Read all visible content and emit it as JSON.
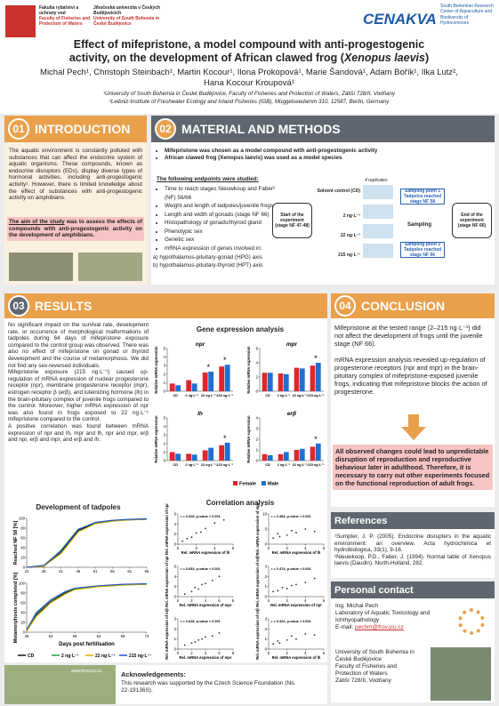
{
  "header": {
    "logo_faculty_cz": "Fakulta rybářství a ochrany vod",
    "logo_faculty_en": "Faculty of Fisheries and Protection of Waters",
    "logo_uni_cz": "Jihočeská univerzita v Českých Budějovicích",
    "logo_uni_en": "University of South Bohemia in České Budějovice",
    "logo_cenakva": "CENAKVA",
    "logo_center": "South Bohemian Research Center of Aquaculture and Biodiversity of Hydrocenoses",
    "title": "Effect of mifepristone, a model compound with anti-progestogenic activity, on the development of African clawed frog (",
    "title_species": "Xenopus laevis",
    "title_end": ")",
    "authors": "Michal Pech¹, Christoph Steinbach¹, Martin Kocour¹, Ilona Prokopová¹, Marie Šandová¹, Adam Bořík¹, Ilka Lutz², Hana Kocour Kroupová¹",
    "affiliations": [
      "¹University of South Bohemia in České Budějovice, Faculty of Fisheries and Protection of Waters, Zátiší 728/II, Vodňany",
      "²Leibniz-Institute of Freshwater Ecology and Inland Fisheries (IGB), Müggelseedamm 310, 12587, Berlin, Germany"
    ]
  },
  "intro": {
    "number": "01",
    "heading": "INTRODUCTION",
    "text": "The aquatic environment is constantly polluted with substances that can affect the endocrine system of aquatic organisms. These compounds, known as endocrine disruptors (EDs), display diverse types of hormonal activities, including anti-progestogenic activity¹. However, there is limited knowledge about the effect of substances with anti-progestogenic activity on amphibians.",
    "aim_lead": "The aim of the study",
    "aim_text": " was to assess the effects of compounds with anti-progestogenic activity on the development of amphibians."
  },
  "methods": {
    "number": "02",
    "heading": "MATERIAL AND METHODS",
    "bullets": [
      "Mifepristone was chosen as a model compound with anti-progestogenic activity",
      "African clawed frog (Xenopus laevis) was used as a model species"
    ],
    "endpoints_heading": "The following endpoints were studied:",
    "endpoints": [
      "Time to reach stages Nieuwkoup and Faber² (NF) 58/66",
      "Weight and length of tadpoles/juvenile frogs",
      "Length and width of gonads (stage NF 66)",
      "Histopathology of gonads/thyroid gland",
      "Phenotypic sex",
      "Genetic sex",
      "mRNA expression of genes involved in:"
    ],
    "axes": [
      "a) hypothalamus-pituitary-gonad (HPG) axis",
      "b) hypothalamus-pituitary-thyroid (HPT) axis"
    ],
    "diagram": {
      "start": "Start of the experiment (stage NF 47-48)",
      "replicates": "4 replicates",
      "groups": [
        "Solvent control (CD)",
        "2 ng·L⁻¹",
        "22 ng·L⁻¹",
        "215 ng·L⁻¹"
      ],
      "sampling1": "Sampling point 1 Tadpoles reached stage NF 58",
      "sampling": "Sampling",
      "sampling2": "Sampling point 2 Tadpoles reached stage NF 66",
      "end": "End of the experiment (stage NF 66)"
    }
  },
  "results": {
    "number": "03",
    "heading": "RESULTS",
    "paragraphs": [
      "No significant impact on the survival rate, development rate, or occurrence of morphological malformations of tadpoles during 64 days of mifepristone exposure compared to the control group was observed. There was also no effect of mifepristone on gonad or thyroid development and the course of metamorphosis. We did not find any sex-reversed individuals.",
      "Mifepristone exposure (215 ng·L⁻¹) caused up-regulation of mRNA expression of nuclear progesterone receptor (npr), membrane progesterone receptor (mpr), estrogen receptor β (erβ), and luteinizing hormone (lh) in the brain-pituitary complex of juvenile frogs compared to the control. Moreover, higher mRNA expression of npr was also found in frogs exposed to 22 ng·L⁻¹ mifepristone compared to the control.",
      "A positive correlation was found between mRNA expression of npr and lh, mpr and lh, npr and mpr, erβ and npr, erβ and mpr, and erβ and lh."
    ],
    "gene_title": "Gene expression analysis",
    "development_title": "Development of tadpoles",
    "correlation_title": "Correlation analysis"
  },
  "conclusion": {
    "number": "04",
    "heading": "CONCLUSION",
    "paragraphs": [
      "Mifepristone at the tested range (2–215 ng·L⁻¹) did not affect the development of frogs until the juvenile stage (NF 66).",
      "mRNA expression analysis revealed up-regulation of progesterone receptors (npr and mpr) in the brain-pituitary complex of mifepristone-exposed juvenile frogs, indicating that mifepristone blocks the action of progesterone."
    ],
    "highlight": "All observed changes could lead to unpredictable disruption of reproduction and reproductive behaviour later in adulthood. Therefore, it is necessary to carry out other experiments focused on the functional reproduction of adult frogs."
  },
  "references": {
    "heading": "References",
    "items": [
      "¹Sumpter, J. P. (2005). Endocrine disrupters in the aquatic environment: an overview. Acta hydrochimica et hydrobiologica, 33(1), 9-16.",
      "²Nieuwkoop, P.D., Faber, J. (1994). Normal table of Xenopus laevis (Daudin). North-Holland, 282."
    ]
  },
  "contact": {
    "heading": "Personal contact",
    "name": "Ing. Michal Pech",
    "lab": "Laboratory of Aquatic Toxicology and Ichthyopathology",
    "email_label": "E-mail: ",
    "email": "pechm@frov.jcu.cz",
    "address": [
      "University of South Bohemia in České Budějovice",
      "Faculty of Fisheries and Protection of Waters",
      "Zátiší 728/II, Vodňany"
    ]
  },
  "acknowledgements": {
    "heading": "Acknowledgements:",
    "text": "This research was supported by the Czech Science Foundation (No. 22-19136S).",
    "website": "www.frov.jcu.cz"
  },
  "chart_data": [
    {
      "type": "bar",
      "title": "npr",
      "ylabel": "Relative mRNA expression",
      "categories": [
        "CD",
        "2 ng·L⁻¹",
        "22 ng·L⁻¹",
        "215 ng·L⁻¹"
      ],
      "series": [
        {
          "name": "Female",
          "color": "#e3242b",
          "values": [
            0.9,
            1.3,
            2.2,
            2.9
          ]
        },
        {
          "name": "Male",
          "color": "#1f6fd1",
          "values": [
            0.7,
            0.9,
            2.3,
            3.1
          ]
        }
      ],
      "ylim": [
        0,
        5
      ],
      "yticks": [
        0,
        1,
        2,
        3,
        4,
        5
      ],
      "stars": [
        null,
        null,
        "*",
        "*"
      ]
    },
    {
      "type": "bar",
      "title": "mpr",
      "ylabel": "Relative mRNA expression",
      "categories": [
        "CD",
        "2 ng·L⁻¹",
        "22 ng·L⁻¹",
        "215 ng·L⁻¹"
      ],
      "series": [
        {
          "name": "Female",
          "color": "#e3242b",
          "values": [
            2.6,
            2.5,
            3.3,
            3.6
          ]
        },
        {
          "name": "Male",
          "color": "#1f6fd1",
          "values": [
            2.6,
            2.4,
            3.2,
            4.0
          ]
        }
      ],
      "ylim": [
        0,
        6
      ],
      "yticks": [
        0,
        2,
        4,
        6
      ],
      "stars": [
        null,
        null,
        null,
        "*"
      ]
    },
    {
      "type": "bar",
      "title": "lh",
      "ylabel": "Relative mRNA expression",
      "categories": [
        "CD",
        "2 ng·L⁻¹",
        "22 ng·L⁻¹",
        "215 ng·L⁻¹"
      ],
      "series": [
        {
          "name": "Female",
          "color": "#e3242b",
          "values": [
            1.0,
            0.8,
            1.2,
            1.8
          ]
        },
        {
          "name": "Male",
          "color": "#1f6fd1",
          "values": [
            0.8,
            0.7,
            1.5,
            2.1
          ]
        }
      ],
      "ylim": [
        0,
        5
      ],
      "yticks": [
        0,
        1,
        2,
        3,
        4,
        5
      ],
      "stars": [
        null,
        null,
        null,
        "*"
      ]
    },
    {
      "type": "bar",
      "title": "erβ",
      "ylabel": "Relative mRNA expression",
      "categories": [
        "CD",
        "2 ng·L⁻¹",
        "22 ng·L⁻¹",
        "215 ng·L⁻¹"
      ],
      "series": [
        {
          "name": "Female",
          "color": "#e3242b",
          "values": [
            0.6,
            0.6,
            1.0,
            1.3
          ]
        },
        {
          "name": "Male",
          "color": "#1f6fd1",
          "values": [
            0.5,
            0.8,
            1.1,
            1.6
          ]
        }
      ],
      "ylim": [
        0,
        4
      ],
      "yticks": [
        0,
        1,
        2,
        3,
        4
      ],
      "stars": [
        null,
        null,
        null,
        "*"
      ]
    },
    {
      "type": "line",
      "ylabel": "Reached NF 58 [%]",
      "x": [
        31,
        36,
        41,
        46,
        51,
        56,
        61,
        66
      ],
      "xlim": [
        31,
        66
      ],
      "xticks": [
        31,
        36,
        41,
        46,
        51,
        56,
        61,
        66
      ],
      "ylim": [
        0,
        100
      ],
      "yticks": [
        0,
        20,
        40,
        60,
        80,
        100
      ],
      "series": [
        {
          "name": "CD",
          "color": "#111111",
          "values": [
            0,
            2,
            30,
            75,
            90,
            95,
            97,
            98
          ]
        },
        {
          "name": "2 ng·L⁻¹",
          "color": "#2a9d3a",
          "values": [
            0,
            3,
            35,
            78,
            91,
            96,
            98,
            99
          ]
        },
        {
          "name": "22 ng·L⁻¹",
          "color": "#d4b000",
          "values": [
            0,
            2,
            28,
            72,
            89,
            94,
            97,
            98
          ]
        },
        {
          "name": "215 ng·L⁻¹",
          "color": "#1f4fd1",
          "values": [
            0,
            4,
            33,
            77,
            92,
            96,
            98,
            99
          ]
        }
      ]
    },
    {
      "type": "line",
      "ylabel": "Metamorphosis completed [%]",
      "xlabel": "Days post fertilisation",
      "x": [
        49,
        51,
        54,
        57,
        59,
        64,
        69,
        74
      ],
      "xlim": [
        49,
        74
      ],
      "xticks": [
        49,
        54,
        59,
        64,
        69,
        74
      ],
      "ylim": [
        0,
        100
      ],
      "yticks": [
        0,
        20,
        40,
        60,
        80,
        100
      ],
      "series": [
        {
          "name": "CD",
          "color": "#111111",
          "values": [
            3,
            35,
            62,
            80,
            88,
            94,
            97,
            98
          ]
        },
        {
          "name": "2 ng·L⁻¹",
          "color": "#2a9d3a",
          "values": [
            4,
            38,
            65,
            82,
            89,
            95,
            97,
            99
          ]
        },
        {
          "name": "22 ng·L⁻¹",
          "color": "#d4b000",
          "values": [
            2,
            32,
            60,
            78,
            87,
            93,
            96,
            98
          ]
        },
        {
          "name": "215 ng·L⁻¹",
          "color": "#1f4fd1",
          "values": [
            5,
            40,
            66,
            83,
            90,
            95,
            98,
            99
          ]
        }
      ]
    },
    {
      "type": "scatter",
      "text": "r = 0.926; p-value < 0.001",
      "xlabel": "Rel. mRNA expression of lh",
      "ylabel": "Rel. mRNA expression of npr",
      "color": "#333333",
      "xlim": [
        0,
        6
      ],
      "xticks": [
        0,
        2,
        4,
        6
      ],
      "ylim": [
        0,
        6
      ],
      "yticks": [
        0,
        2,
        4,
        6
      ],
      "x": [
        0.5,
        1,
        1.5,
        2,
        2.5,
        3,
        4,
        5
      ],
      "y": [
        0.6,
        1.1,
        1.4,
        2.2,
        2.4,
        3.1,
        4.2,
        4.8
      ]
    },
    {
      "type": "scatter",
      "text": "r = 0.384; p-value < 0.001",
      "xlabel": "Rel. mRNA expression of lh",
      "ylabel": "Rel. mRNA expression of mpr",
      "color": "#333333",
      "xlim": [
        0,
        6
      ],
      "xticks": [
        0,
        2,
        4,
        6
      ],
      "ylim": [
        0,
        10
      ],
      "yticks": [
        0,
        5,
        10
      ],
      "x": [
        0.5,
        1,
        1.2,
        2,
        2.5,
        3,
        4,
        5
      ],
      "y": [
        2,
        3.5,
        2.5,
        3,
        4.5,
        3.8,
        5,
        4.2
      ]
    },
    {
      "type": "scatter",
      "text": "r = 0.652; p-value < 0.001",
      "xlabel": "Rel. mRNA expression of mpr",
      "ylabel": "Rel. mRNA expression of npr",
      "color": "#333333",
      "xlim": [
        0,
        8
      ],
      "xticks": [
        0,
        2,
        4,
        6,
        8
      ],
      "ylim": [
        0,
        6
      ],
      "yticks": [
        0,
        2,
        4,
        6
      ],
      "x": [
        1,
        2,
        2.5,
        3,
        3.5,
        4,
        5,
        6
      ],
      "y": [
        0.5,
        1,
        1.8,
        1.5,
        2.4,
        2.6,
        3.2,
        4
      ]
    },
    {
      "type": "scatter",
      "text": "r = 0.474; p-value < 0.001",
      "xlabel": "Rel. mRNA expression of npr",
      "ylabel": "Rel. mRNA expression of erβ",
      "color": "#333333",
      "xlim": [
        0,
        6
      ],
      "xticks": [
        0,
        2,
        4,
        6
      ],
      "ylim": [
        0,
        3
      ],
      "yticks": [
        0,
        1,
        2,
        3
      ],
      "x": [
        0.5,
        1,
        1.5,
        2,
        2.5,
        3,
        4,
        5
      ],
      "y": [
        0.5,
        0.6,
        0.9,
        0.8,
        1.1,
        1.2,
        1.4,
        1.8
      ]
    },
    {
      "type": "scatter",
      "text": "r = 0.628; p-value < 0.001",
      "xlabel": "Rel. mRNA expression of mpr",
      "ylabel": "Rel. mRNA expression of erβ",
      "color": "#333333",
      "xlim": [
        0,
        8
      ],
      "xticks": [
        0,
        2,
        4,
        6,
        8
      ],
      "ylim": [
        0,
        3
      ],
      "yticks": [
        0,
        1,
        2,
        3
      ],
      "x": [
        1,
        2,
        2.5,
        3,
        3.5,
        4,
        5,
        6
      ],
      "y": [
        0.4,
        0.6,
        0.7,
        0.9,
        1,
        1.2,
        1.3,
        1.6
      ]
    },
    {
      "type": "scatter",
      "text": "r = 0.322; p-value < 0.001",
      "xlabel": "Rel. mRNA expression of lh",
      "ylabel": "Rel. mRNA expression of erβ",
      "color": "#333333",
      "xlim": [
        0,
        6
      ],
      "xticks": [
        0,
        2,
        4,
        6
      ],
      "ylim": [
        0,
        3
      ],
      "yticks": [
        0,
        1,
        2,
        3
      ],
      "x": [
        0.5,
        1,
        1.2,
        2,
        2.5,
        3,
        4,
        5
      ],
      "y": [
        0.5,
        0.8,
        0.6,
        0.9,
        1.3,
        1.0,
        1.5,
        1.4
      ]
    }
  ]
}
